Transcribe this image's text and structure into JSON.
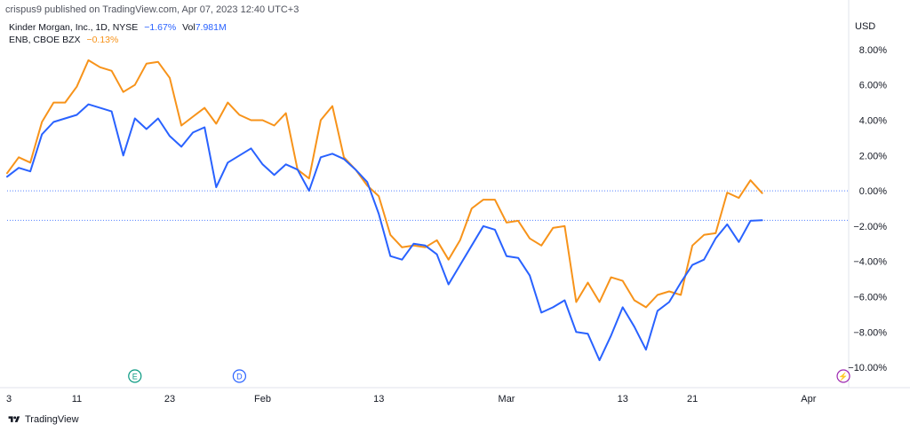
{
  "publisher": "crispus9 published on TradingView.com, Apr 07, 2023 12:40 UTC+3",
  "legend": {
    "main": {
      "name": "Kinder Morgan, Inc., 1D, NYSE",
      "change": "−1.67%",
      "vol_label": "Vol",
      "vol": "7.981M",
      "color": "#2962ff"
    },
    "compare": {
      "name": "ENB, CBOE BZX",
      "change": "−0.13%",
      "color": "#f7931a"
    }
  },
  "currency": "USD",
  "footer": {
    "brand": "TradingView"
  },
  "chart_data": {
    "type": "line",
    "ylabel": "",
    "ylim": [
      -10.8,
      8.8
    ],
    "x_ticks": [
      "3",
      "11",
      "23",
      "Feb",
      "13",
      "Mar",
      "13",
      "21",
      "Apr"
    ],
    "y_ticks": [
      "8.00%",
      "6.00%",
      "4.00%",
      "2.00%",
      "0.00%",
      "−2.00%",
      "−4.00%",
      "−6.00%",
      "−8.00%",
      "−10.00%"
    ],
    "y_tick_values": [
      8,
      6,
      4,
      2,
      0,
      -2,
      -4,
      -6,
      -8,
      -10
    ],
    "x_tick_index": [
      0,
      6,
      14,
      22,
      32,
      43,
      53,
      59,
      69
    ],
    "reference_lines": [
      {
        "value": 0,
        "color": "#2962ff"
      },
      {
        "value": -1.67,
        "color": "#2962ff"
      }
    ],
    "event_markers": [
      {
        "label": "E",
        "index": 11,
        "color": "#089981"
      },
      {
        "label": "D",
        "index": 20,
        "color": "#2962ff"
      },
      {
        "label": "⚡",
        "index": 72,
        "color": "#9c27b0"
      }
    ],
    "series": [
      {
        "name": "Kinder Morgan, Inc.",
        "color": "#2962ff",
        "values": [
          0.8,
          1.3,
          1.1,
          3.2,
          3.9,
          4.1,
          4.3,
          4.9,
          4.7,
          4.5,
          2.0,
          4.1,
          3.5,
          4.1,
          3.1,
          2.5,
          3.3,
          3.6,
          0.2,
          1.6,
          2.0,
          2.4,
          1.5,
          0.9,
          1.5,
          1.2,
          0.0,
          1.9,
          2.1,
          1.8,
          1.2,
          0.5,
          -1.3,
          -3.7,
          -3.9,
          -3.0,
          -3.1,
          -3.6,
          -5.3,
          -4.2,
          -3.1,
          -2.0,
          -2.2,
          -3.7,
          -3.8,
          -4.8,
          -6.9,
          -6.6,
          -6.2,
          -8.0,
          -8.1,
          -9.6,
          -8.2,
          -6.6,
          -7.7,
          -9.0,
          -6.8,
          -6.3,
          -5.2,
          -4.2,
          -3.9,
          -2.7,
          -1.9,
          -2.9,
          -1.7,
          -1.67
        ]
      },
      {
        "name": "ENB",
        "color": "#f7931a",
        "values": [
          1.0,
          1.9,
          1.6,
          3.9,
          5.0,
          5.0,
          5.9,
          7.4,
          7.0,
          6.8,
          5.6,
          6.0,
          7.2,
          7.3,
          6.4,
          3.7,
          4.2,
          4.7,
          3.8,
          5.0,
          4.3,
          4.0,
          4.0,
          3.7,
          4.4,
          1.2,
          0.7,
          4.0,
          4.8,
          1.9,
          1.2,
          0.3,
          -0.3,
          -2.5,
          -3.2,
          -3.1,
          -3.2,
          -2.8,
          -3.9,
          -2.8,
          -1.0,
          -0.5,
          -0.5,
          -1.8,
          -1.7,
          -2.7,
          -3.1,
          -2.1,
          -2.0,
          -6.3,
          -5.2,
          -6.3,
          -4.9,
          -5.1,
          -6.2,
          -6.6,
          -5.9,
          -5.7,
          -5.9,
          -3.1,
          -2.5,
          -2.4,
          -0.1,
          -0.4,
          0.6,
          -0.13
        ]
      }
    ]
  }
}
